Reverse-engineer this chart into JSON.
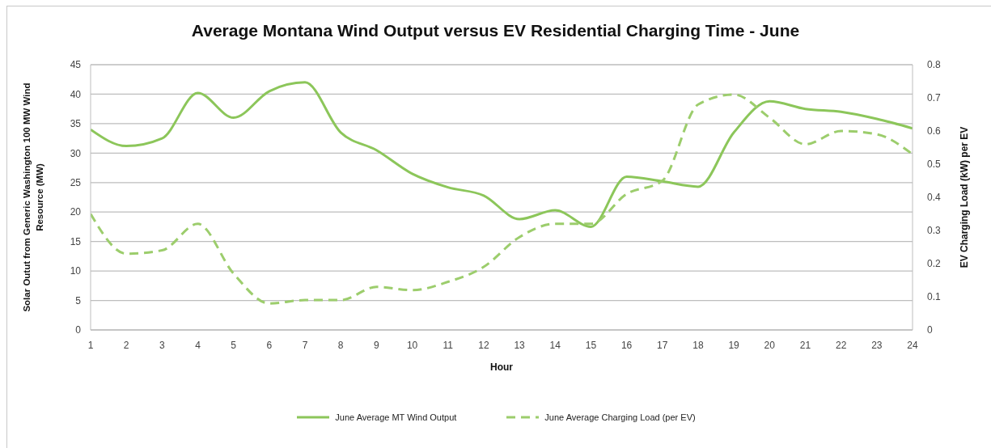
{
  "chart_data": {
    "type": "line",
    "title": "Average Montana Wind Output versus EV Residential Charging Time - June",
    "xlabel": "Hour",
    "ylabel": "Solar Outut from Generic Washington 100 MW Wind Resource (MW)",
    "y2label": "EV Charging Load (kW) per EV",
    "x": [
      1,
      2,
      3,
      4,
      5,
      6,
      7,
      8,
      9,
      10,
      11,
      12,
      13,
      14,
      15,
      16,
      17,
      18,
      19,
      20,
      21,
      22,
      23,
      24
    ],
    "xlim": [
      1,
      24
    ],
    "xticks": [
      1,
      2,
      3,
      4,
      5,
      6,
      7,
      8,
      9,
      10,
      11,
      12,
      13,
      14,
      15,
      16,
      17,
      18,
      19,
      20,
      21,
      22,
      23,
      24
    ],
    "ylim": [
      0,
      45
    ],
    "yticks": [
      0,
      5,
      10,
      15,
      20,
      25,
      30,
      35,
      40,
      45
    ],
    "y2lim": [
      0,
      0.8
    ],
    "y2ticks": [
      0,
      0.1,
      0.2,
      0.3,
      0.4,
      0.5,
      0.6,
      0.7,
      0.8
    ],
    "grid": "y",
    "legend": "bottom",
    "marker": "none",
    "series": [
      {
        "name": "June Average MT Wind Output",
        "color": "#8cc65a",
        "line_style": "solid",
        "values": [
          34,
          31.2,
          32.5,
          40.2,
          36,
          40.5,
          42,
          33.5,
          30.5,
          26.5,
          24.2,
          22.8,
          18.8,
          20.3,
          17.5,
          26,
          25.2,
          24.3,
          33.5,
          38.8,
          37.5,
          37,
          35.8,
          34.2
        ]
      },
      {
        "name": "June Average Charging Load (per EV)",
        "color": "#9ccd6c",
        "axis": "y2",
        "line_style": "dashed",
        "values": [
          0.35,
          0.23,
          0.24,
          0.32,
          0.17,
          0.08,
          0.09,
          0.09,
          0.13,
          0.12,
          0.145,
          0.19,
          0.28,
          0.32,
          0.32,
          0.41,
          0.45,
          0.68,
          0.71,
          0.64,
          0.56,
          0.6,
          0.59,
          0.53
        ]
      }
    ]
  }
}
